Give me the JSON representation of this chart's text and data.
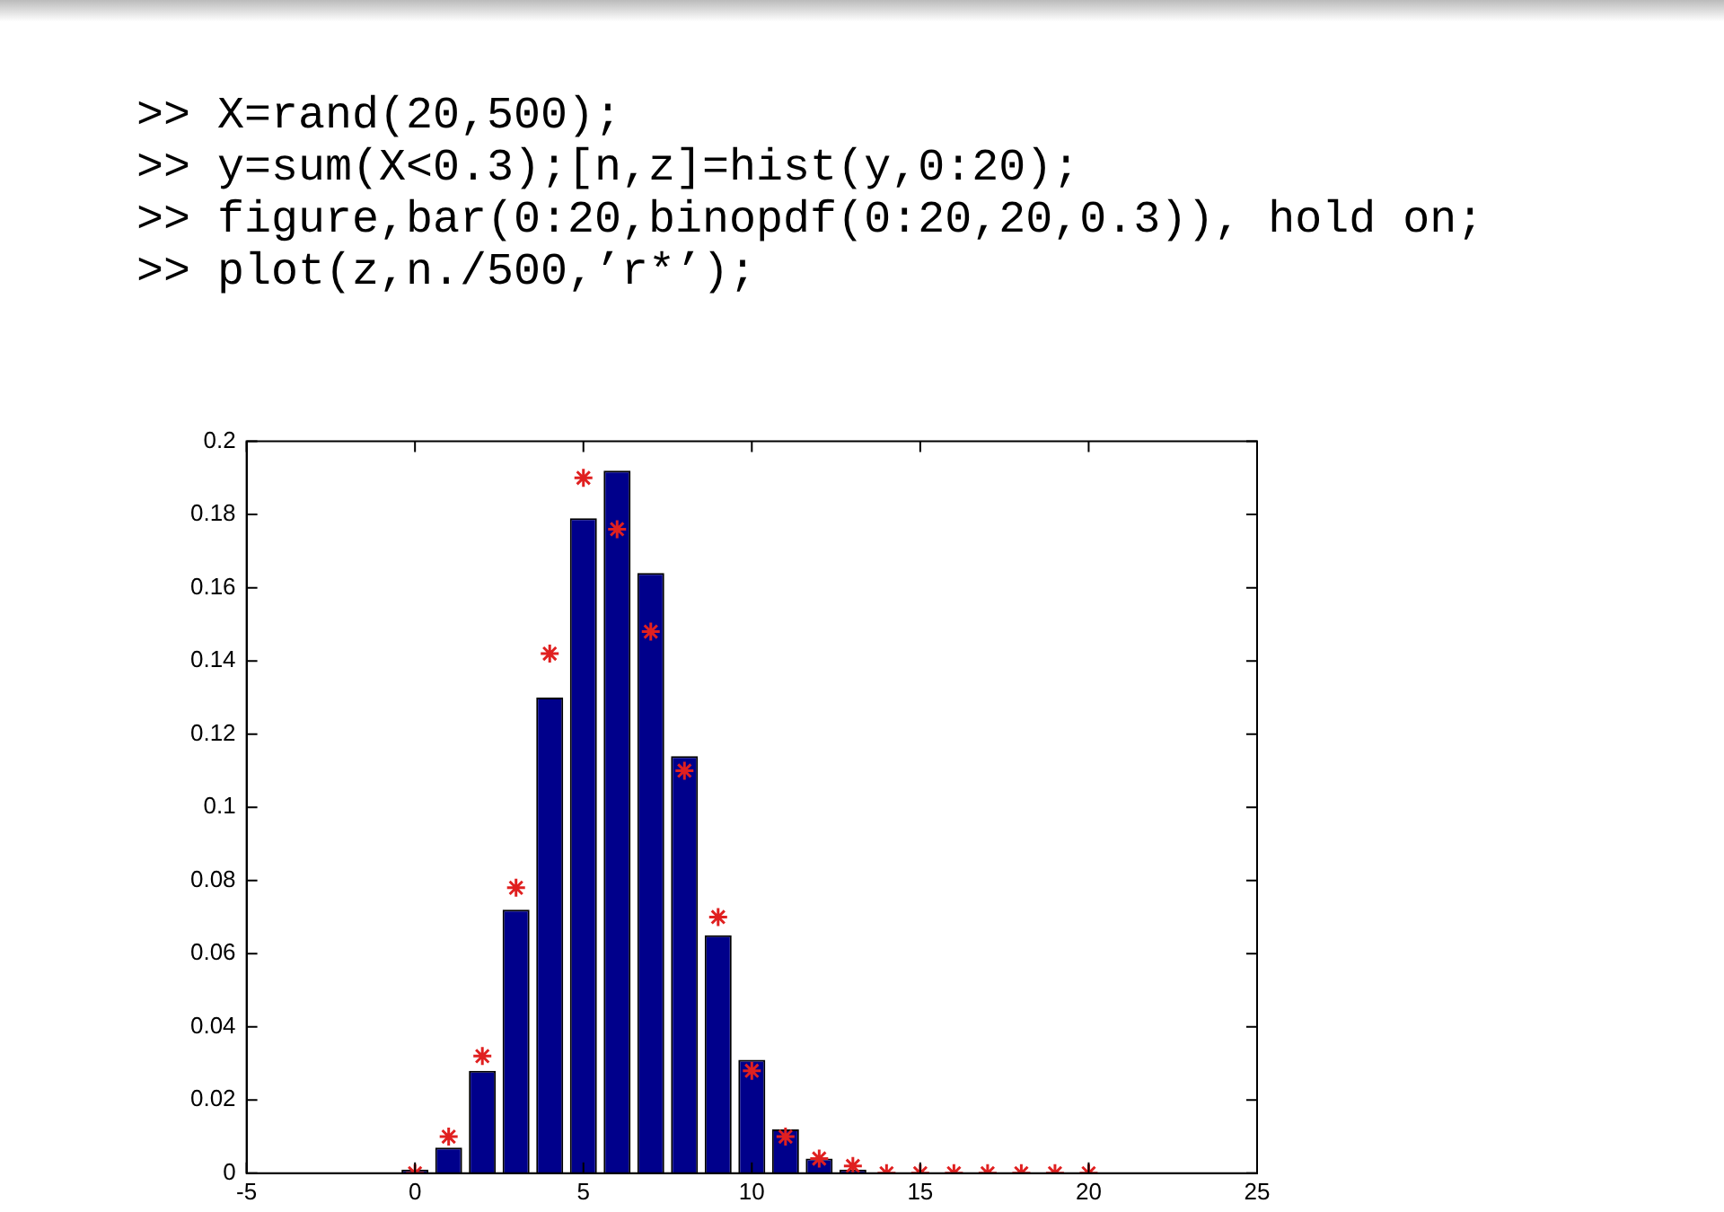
{
  "chart_data": {
    "type": "bar",
    "annotations": [
      ">> X=rand(20,500);",
      ">> y=sum(X<0.3);[n,z]=hist(y,0:20);",
      ">> figure,bar(0:20,binopdf(0:20,20,0.3)), hold on;",
      ">> plot(z,n./500,’r*’);"
    ],
    "x": [
      0,
      1,
      2,
      3,
      4,
      5,
      6,
      7,
      8,
      9,
      10,
      11,
      12,
      13,
      14,
      15,
      16,
      17,
      18,
      19,
      20
    ],
    "series": [
      {
        "color": "#00008b",
        "values": [
          0.001,
          0.007,
          0.028,
          0.072,
          0.13,
          0.179,
          0.192,
          0.164,
          0.114,
          0.065,
          0.031,
          0.012,
          0.004,
          0.001,
          0,
          0,
          0,
          0,
          0,
          0,
          0
        ]
      },
      {
        "type": "scatter",
        "color": "#e02020",
        "marker": "cross",
        "values": [
          0,
          0.01,
          0.032,
          0.078,
          0.142,
          0.19,
          0.176,
          0.148,
          0.11,
          0.07,
          0.028,
          0.01,
          0.004,
          0.002,
          0,
          0,
          0,
          0,
          0,
          0,
          0
        ]
      }
    ],
    "xlim": [
      -5,
      25
    ],
    "xticks": [
      -5,
      0,
      5,
      10,
      15,
      20,
      25
    ],
    "ylim": [
      0,
      0.2
    ],
    "yticks": [
      0,
      0.02,
      0.04,
      0.06,
      0.08,
      0.1,
      0.12,
      0.14,
      0.16,
      0.18,
      0.2
    ],
    "grid": false,
    "legend": false
  }
}
